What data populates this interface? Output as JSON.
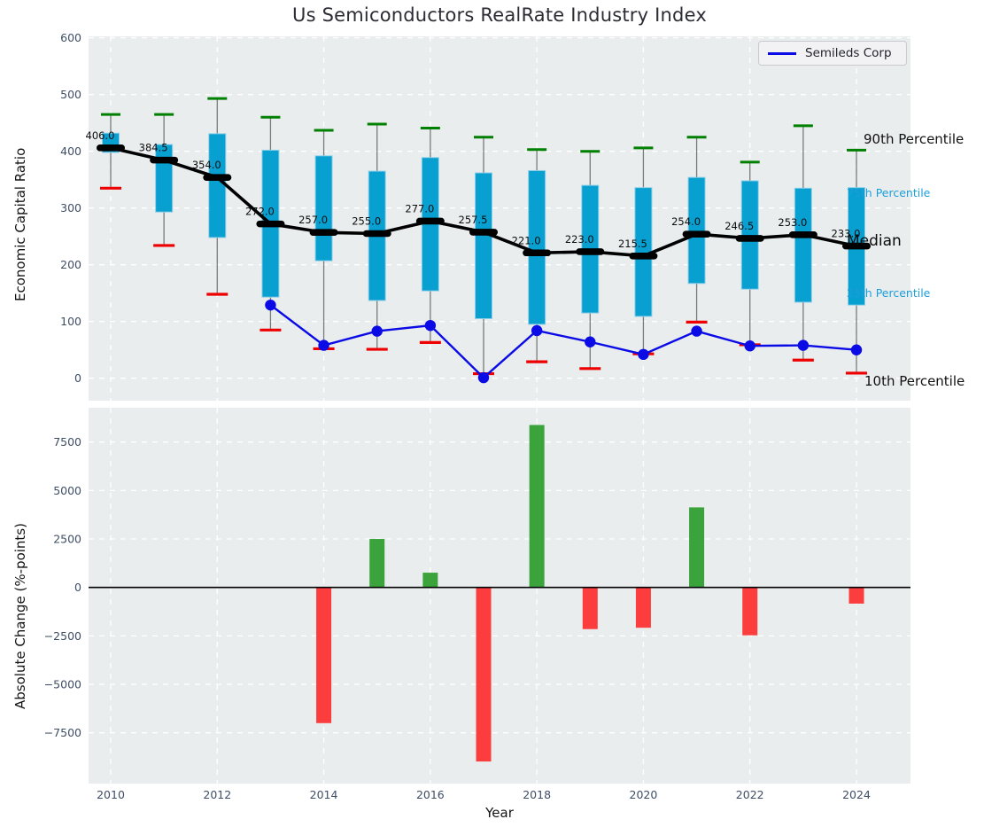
{
  "title": "Us Semiconductors RealRate Industry Index",
  "axes": {
    "top": {
      "ylabel": "Economic Capital Ratio",
      "yticks": [
        600,
        500,
        400,
        300,
        200,
        100,
        0
      ]
    },
    "bottom": {
      "ylabel": "Absolute Change (%-points)",
      "xlabel": "Year",
      "yticks": [
        7500,
        5000,
        2500,
        0,
        -2500,
        -5000,
        -7500
      ],
      "xticks": [
        2010,
        2012,
        2014,
        2016,
        2018,
        2020,
        2022,
        2024
      ]
    }
  },
  "legend": {
    "label": "Semileds Corp"
  },
  "annotations": {
    "p90": "90th Percentile",
    "p75": "75th Percentile",
    "median": "Median",
    "p25": "25th Percentile",
    "p10": "10th Percentile"
  },
  "colors": {
    "panel_bg": "#e9edee",
    "grid": "#ffffff",
    "box_fill": "#089fd1",
    "box_edge": "#8ecfe8",
    "whisker": "#7a7a7a",
    "cap_90": "#008000",
    "cap_10": "#ee0000",
    "median_line": "#000000",
    "company_line": "#0b0be6",
    "bar_positive": "#3ba33b",
    "bar_negative": "#fb3d3d",
    "tick_text": "#3e4e66",
    "label_text": "#141414"
  },
  "chart_data": [
    {
      "type": "box-whisker-timeseries",
      "title": "Us Semiconductors RealRate Industry Index",
      "ylabel": "Economic Capital Ratio",
      "ylim": [
        0,
        600
      ],
      "grid": true,
      "legend_position": "upper right",
      "years": [
        2010,
        2011,
        2012,
        2013,
        2014,
        2015,
        2016,
        2017,
        2018,
        2019,
        2020,
        2021,
        2022,
        2023,
        2024
      ],
      "p90": [
        465,
        465,
        493,
        460,
        437,
        448,
        441,
        425,
        403,
        400,
        406,
        425,
        381,
        445,
        402
      ],
      "p75": [
        432,
        412,
        431,
        402,
        392,
        365,
        389,
        362,
        366,
        340,
        336,
        354,
        348,
        335,
        336
      ],
      "median": [
        406.0,
        384.5,
        354.0,
        272.0,
        257.0,
        255.0,
        277.0,
        257.5,
        221.0,
        223.0,
        215.5,
        254.0,
        246.5,
        253.0,
        233.0
      ],
      "p25": [
        398,
        293,
        248,
        143,
        207,
        137,
        154,
        105,
        95,
        115,
        109,
        167,
        157,
        134,
        129
      ],
      "p10": [
        335,
        234,
        148,
        85,
        52,
        51,
        63,
        8,
        29,
        17,
        43,
        99,
        59,
        32,
        9
      ],
      "series": [
        {
          "name": "Semileds Corp",
          "values": [
            null,
            null,
            null,
            129,
            58,
            83,
            93,
            1,
            84,
            64,
            42,
            83,
            57,
            58,
            50
          ]
        }
      ]
    },
    {
      "type": "bar",
      "ylabel": "Absolute Change (%-points)",
      "xlabel": "Year",
      "ylim": [
        -10100,
        9200
      ],
      "grid": true,
      "years": [
        2010,
        2011,
        2012,
        2013,
        2014,
        2015,
        2016,
        2017,
        2018,
        2019,
        2020,
        2021,
        2022,
        2023,
        2024
      ],
      "values": [
        null,
        null,
        null,
        null,
        -7000,
        2500,
        760,
        -8980,
        8380,
        -2150,
        -2080,
        4130,
        -2470,
        0,
        -835
      ]
    }
  ]
}
